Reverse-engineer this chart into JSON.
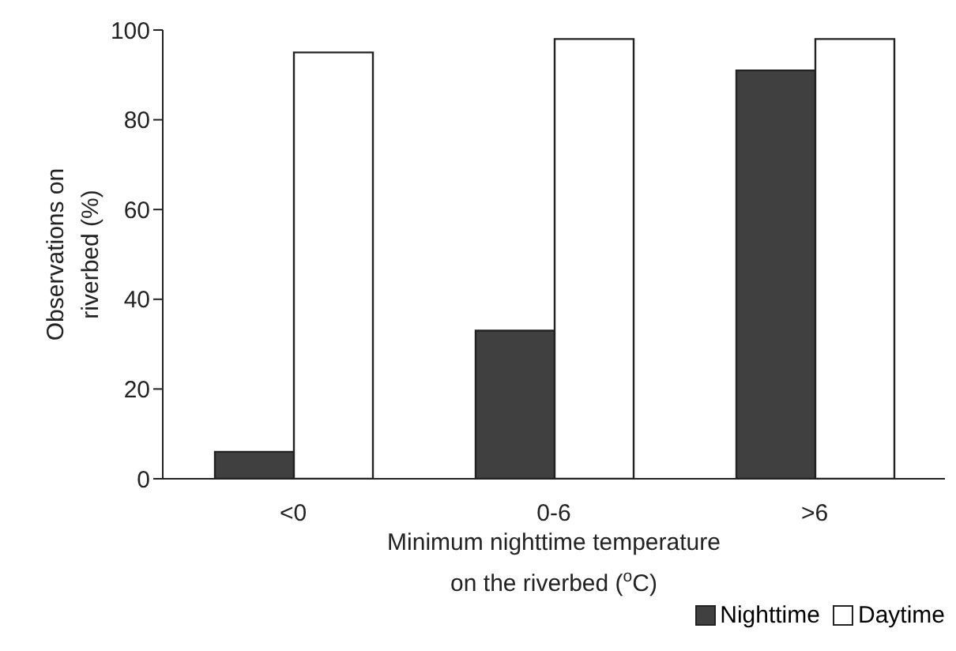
{
  "chart_data": {
    "type": "bar",
    "xlabel": "Minimum nighttime temperature\non the riverbed ($^{o}$C)",
    "ylabel": "Observations on\nriverbed (%)",
    "categories": [
      "<0",
      "0-6",
      ">6"
    ],
    "series": [
      {
        "name": "Nighttime",
        "color": "#404040",
        "values": [
          6,
          33,
          91
        ]
      },
      {
        "name": "Daytime",
        "color": "#ffffff",
        "values": [
          95,
          98,
          98
        ]
      }
    ],
    "ylim": [
      0,
      100
    ],
    "yticks": [
      0,
      20,
      40,
      60,
      80,
      100
    ],
    "grid": false,
    "legend": "bottom right"
  }
}
